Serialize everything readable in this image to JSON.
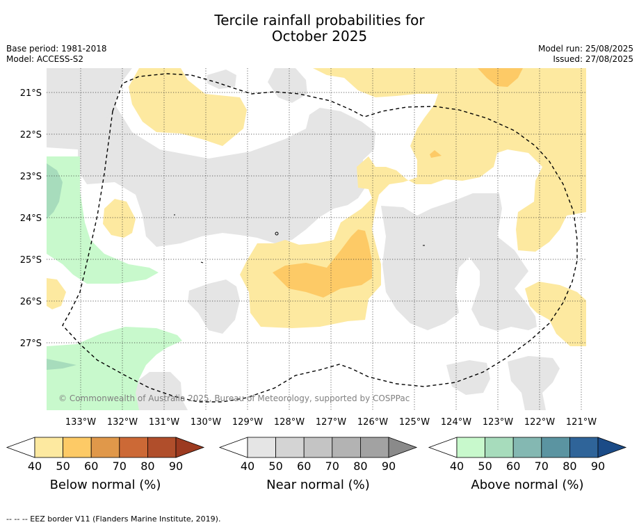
{
  "title_line1": "Tercile rainfall probabilities for",
  "title_line2": "October 2025",
  "meta_left": [
    "Base period: 1981-2018",
    "Model: ACCESS-S2"
  ],
  "meta_right": [
    "Model run: 25/08/2025",
    "Issued: 27/08/2025"
  ],
  "map": {
    "copyright": "© Commonwealth of Australia 2025, Bureau of Meteorology, supported by COSPPac",
    "lon_labels": [
      "133°W",
      "132°W",
      "131°W",
      "130°W",
      "129°W",
      "128°W",
      "127°W",
      "126°W",
      "125°W",
      "124°W",
      "123°W",
      "122°W",
      "121°W"
    ],
    "lat_labels": [
      "21°S",
      "22°S",
      "23°S",
      "24°S",
      "25°S",
      "26°S",
      "27°S"
    ],
    "colors": {
      "below": [
        "#fde9a0",
        "#fdca66",
        "#e0984a",
        "#cc6936",
        "#b04e2b",
        "#9c3a20"
      ],
      "near": [
        "#e5e5e5",
        "#d4d4d4",
        "#c4c4c4",
        "#b3b3b3",
        "#a2a2a2",
        "#8a8a8a"
      ],
      "above": [
        "#c8f9cc",
        "#a7dcbc",
        "#84b8b2",
        "#5b94a1",
        "#2f6499",
        "#1b4b87"
      ]
    }
  },
  "colorbars": [
    {
      "label": "Below normal (%)",
      "ticks": [
        "40",
        "50",
        "60",
        "70",
        "80",
        "90"
      ]
    },
    {
      "label": "Near normal (%)",
      "ticks": [
        "40",
        "50",
        "60",
        "70",
        "80",
        "90"
      ]
    },
    {
      "label": "Above normal (%)",
      "ticks": [
        "40",
        "50",
        "60",
        "70",
        "80",
        "90"
      ]
    }
  ],
  "footnote": "--  --  -- EEZ border V11 (Flanders Marine Institute, 2019)."
}
